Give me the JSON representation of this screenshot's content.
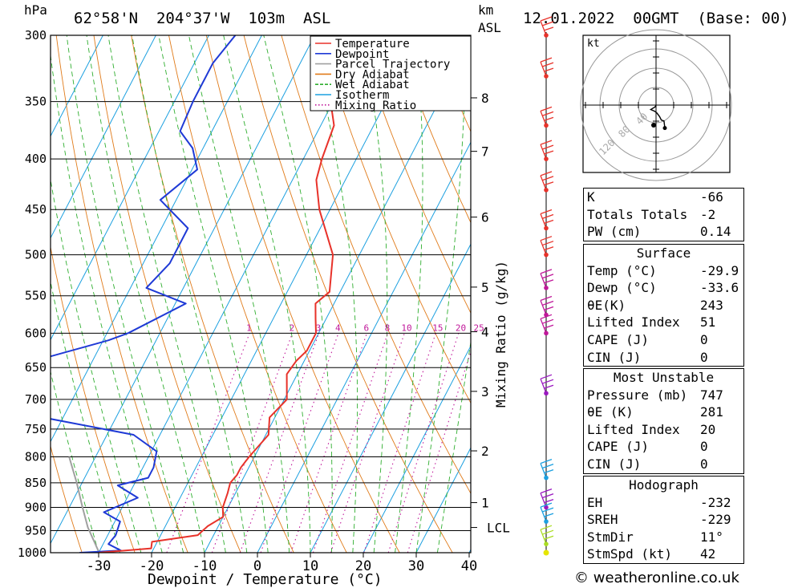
{
  "header": {
    "pressure_unit": "hPa",
    "location": "62°58'N  204°37'W  103m  ASL",
    "height_unit_top": "km",
    "height_unit_bottom": "ASL",
    "datetime": "12.01.2022  00GMT  (Base: 00)"
  },
  "chart_data": {
    "type": "skew-t log-p",
    "xlabel": "Dewpoint / Temperature (°C)",
    "ylabel_left": "hPa",
    "ylabel_right": "Mixing Ratio (g/kg)",
    "pressure_levels": [
      300,
      350,
      400,
      450,
      500,
      550,
      600,
      650,
      700,
      750,
      800,
      850,
      900,
      950,
      1000
    ],
    "x_ticks": [
      -30,
      -20,
      -10,
      0,
      10,
      20,
      30,
      40
    ],
    "xlim": [
      -40,
      40
    ],
    "height_ticks_km": [
      {
        "label": "8",
        "p": 347
      },
      {
        "label": "7",
        "p": 393
      },
      {
        "label": "6",
        "p": 458
      },
      {
        "label": "5",
        "p": 539
      },
      {
        "label": "4",
        "p": 598
      },
      {
        "label": "3",
        "p": 687
      },
      {
        "label": "2",
        "p": 789
      },
      {
        "label": "1",
        "p": 890
      },
      {
        "label": "LCL",
        "p": 943
      }
    ],
    "mixing_ratio_labels": [
      "1",
      "2",
      "3",
      "4",
      "6",
      "8",
      "10",
      "15",
      "20",
      "25"
    ],
    "legend": {
      "placement": "top-right",
      "entries": [
        {
          "name": "Temperature",
          "color": "#e8322a",
          "style": "solid"
        },
        {
          "name": "Dewpoint",
          "color": "#1f3ad6",
          "style": "solid"
        },
        {
          "name": "Parcel Trajectory",
          "color": "#a0a0a0",
          "style": "solid"
        },
        {
          "name": "Dry Adiabat",
          "color": "#e07b1a",
          "style": "solid"
        },
        {
          "name": "Wet Adiabat",
          "color": "#2fae2f",
          "style": "dashed"
        },
        {
          "name": "Isotherm",
          "color": "#1ca0e0",
          "style": "solid"
        },
        {
          "name": "Mixing Ratio",
          "color": "#c0189a",
          "style": "dotted"
        }
      ]
    },
    "temperature": [
      {
        "p": 1000,
        "t": -30.0
      },
      {
        "p": 990,
        "t": -20.5
      },
      {
        "p": 975,
        "t": -21.0
      },
      {
        "p": 960,
        "t": -13.0
      },
      {
        "p": 940,
        "t": -12.0
      },
      {
        "p": 920,
        "t": -10.0
      },
      {
        "p": 900,
        "t": -11.0
      },
      {
        "p": 870,
        "t": -11.5
      },
      {
        "p": 850,
        "t": -12.0
      },
      {
        "p": 835,
        "t": -11.5
      },
      {
        "p": 820,
        "t": -11.5
      },
      {
        "p": 800,
        "t": -11.0
      },
      {
        "p": 760,
        "t": -9.5
      },
      {
        "p": 730,
        "t": -11.0
      },
      {
        "p": 700,
        "t": -9.5
      },
      {
        "p": 660,
        "t": -12.0
      },
      {
        "p": 640,
        "t": -11.5
      },
      {
        "p": 625,
        "t": -10.5
      },
      {
        "p": 600,
        "t": -10.5
      },
      {
        "p": 580,
        "t": -12.0
      },
      {
        "p": 560,
        "t": -13.5
      },
      {
        "p": 545,
        "t": -12.0
      },
      {
        "p": 500,
        "t": -15.0
      },
      {
        "p": 450,
        "t": -22.0
      },
      {
        "p": 420,
        "t": -25.5
      },
      {
        "p": 400,
        "t": -26.5
      },
      {
        "p": 370,
        "t": -27.5
      },
      {
        "p": 350,
        "t": -30.5
      },
      {
        "p": 320,
        "t": -34.5
      },
      {
        "p": 300,
        "t": -35.0
      }
    ],
    "dewpoint": [
      {
        "p": 1000,
        "t": -33.6
      },
      {
        "p": 995,
        "t": -26.0
      },
      {
        "p": 980,
        "t": -29.0
      },
      {
        "p": 960,
        "t": -28.5
      },
      {
        "p": 930,
        "t": -29.0
      },
      {
        "p": 910,
        "t": -33.0
      },
      {
        "p": 880,
        "t": -28.0
      },
      {
        "p": 855,
        "t": -33.0
      },
      {
        "p": 840,
        "t": -28.0
      },
      {
        "p": 820,
        "t": -28.0
      },
      {
        "p": 790,
        "t": -29.0
      },
      {
        "p": 760,
        "t": -35.0
      },
      {
        "p": 725,
        "t": -57.0
      },
      {
        "p": 690,
        "t": -60.0
      },
      {
        "p": 640,
        "t": -61.0
      },
      {
        "p": 610,
        "t": -49.0
      },
      {
        "p": 600,
        "t": -46.0
      },
      {
        "p": 560,
        "t": -38.0
      },
      {
        "p": 540,
        "t": -47.0
      },
      {
        "p": 510,
        "t": -45.0
      },
      {
        "p": 470,
        "t": -45.0
      },
      {
        "p": 440,
        "t": -53.0
      },
      {
        "p": 410,
        "t": -49.0
      },
      {
        "p": 390,
        "t": -52.0
      },
      {
        "p": 375,
        "t": -56.0
      },
      {
        "p": 350,
        "t": -56.5
      },
      {
        "p": 320,
        "t": -56.5
      },
      {
        "p": 300,
        "t": -55.0
      }
    ],
    "parcel": [
      {
        "p": 1000,
        "t": -29.9
      },
      {
        "p": 943,
        "t": -34.5
      },
      {
        "p": 900,
        "t": -37.5
      },
      {
        "p": 850,
        "t": -41.0
      },
      {
        "p": 800,
        "t": -45.0
      }
    ],
    "hodograph": {
      "unit_label": "kt",
      "ring_labels": [
        "40",
        "80",
        "120"
      ],
      "points": [
        [
          0,
          0
        ],
        [
          -2,
          -4
        ],
        [
          -12,
          -10
        ],
        [
          -3,
          -14
        ],
        [
          2,
          -18
        ],
        [
          8,
          -26
        ],
        [
          12,
          -34
        ],
        [
          18,
          -36
        ],
        [
          20,
          -52
        ]
      ]
    }
  },
  "stats_block_1": [
    {
      "label": "K",
      "value": "-66"
    },
    {
      "label": "Totals Totals",
      "value": "-2"
    },
    {
      "label": "PW (cm)",
      "value": "0.14"
    }
  ],
  "stats_block_2": {
    "title": "Surface",
    "rows": [
      {
        "label": "Temp (°C)",
        "value": "-29.9"
      },
      {
        "label": "Dewp (°C)",
        "value": "-33.6"
      },
      {
        "label": "θE(K)",
        "value": "243"
      },
      {
        "label": "Lifted Index",
        "value": "51"
      },
      {
        "label": "CAPE (J)",
        "value": "0"
      },
      {
        "label": "CIN (J)",
        "value": "0"
      }
    ]
  },
  "stats_block_3": {
    "title": "Most Unstable",
    "rows": [
      {
        "label": "Pressure (mb)",
        "value": "747"
      },
      {
        "label": "θE (K)",
        "value": "281"
      },
      {
        "label": "Lifted Index",
        "value": "20"
      },
      {
        "label": "CAPE (J)",
        "value": "0"
      },
      {
        "label": "CIN (J)",
        "value": "0"
      }
    ]
  },
  "stats_block_4": {
    "title": "Hodograph",
    "rows": [
      {
        "label": "EH",
        "value": "-232"
      },
      {
        "label": "SREH",
        "value": "-229"
      },
      {
        "label": "StmDir",
        "value": "11°"
      },
      {
        "label": "StmSpd (kt)",
        "value": "42"
      }
    ]
  },
  "credit": "© weatheronline.co.uk"
}
